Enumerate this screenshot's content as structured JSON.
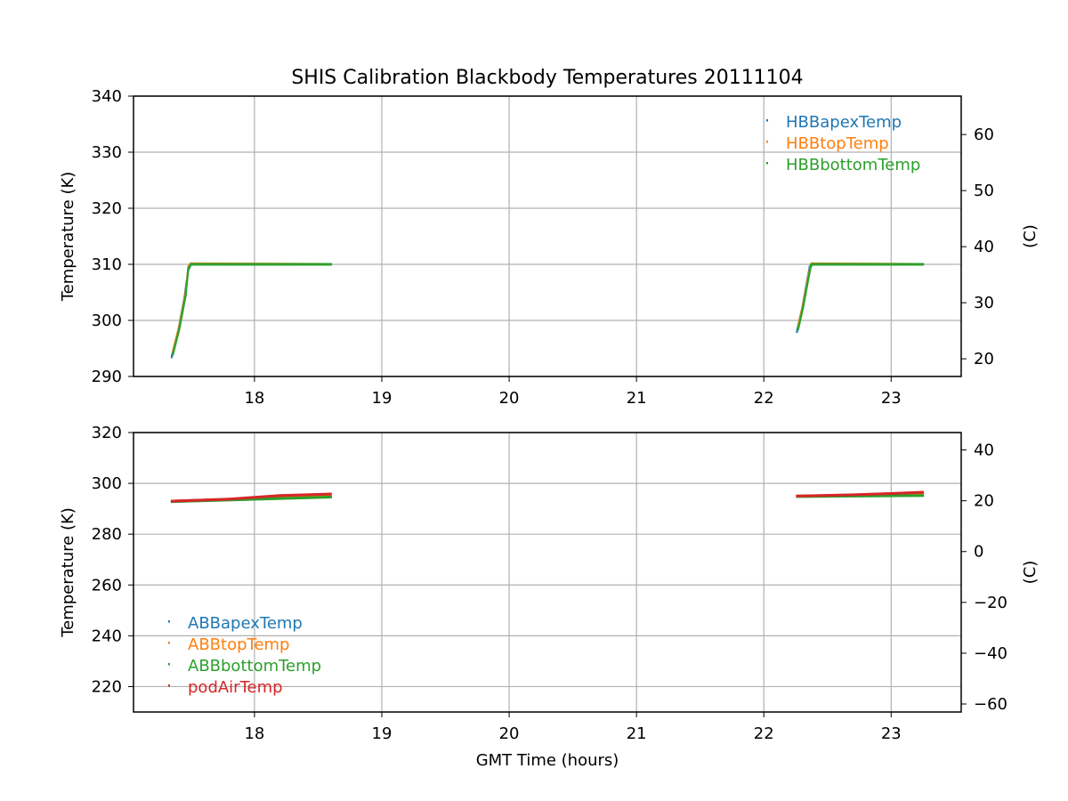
{
  "title": "SHIS Calibration Blackbody Temperatures 20111104",
  "chart_data": [
    {
      "type": "scatter",
      "xlabel": "",
      "ylabel": "Temperature (K)",
      "ylabel_right": "(C)",
      "xlim": [
        17.05,
        23.55
      ],
      "ylim": [
        290,
        340
      ],
      "xticks": [
        18,
        19,
        20,
        21,
        22,
        23
      ],
      "yticks": [
        290,
        300,
        310,
        320,
        330,
        340
      ],
      "yticks_right": [
        20,
        30,
        40,
        50,
        60
      ],
      "legend_loc": "upper-right",
      "grid": true,
      "series": [
        {
          "name": "HBBapexTemp",
          "color": "#1f77b4",
          "segments": [
            {
              "x": [
                17.35,
                17.4,
                17.45,
                17.48,
                17.5,
                18.6
              ],
              "y": [
                293.5,
                298.0,
                304.0,
                309.0,
                310.0,
                310.0
              ]
            },
            {
              "x": [
                22.26,
                22.3,
                22.34,
                22.36,
                22.38,
                23.25
              ],
              "y": [
                298.0,
                302.0,
                307.0,
                309.5,
                310.0,
                310.0
              ]
            }
          ]
        },
        {
          "name": "HBBtopTemp",
          "color": "#ff7f0e",
          "segments": [
            {
              "x": [
                17.36,
                17.41,
                17.46,
                17.48,
                17.5,
                18.6
              ],
              "y": [
                294.5,
                299.0,
                305.0,
                309.5,
                310.1,
                310.0
              ]
            },
            {
              "x": [
                22.27,
                22.31,
                22.35,
                22.37,
                22.38,
                23.25
              ],
              "y": [
                299.0,
                303.0,
                308.0,
                310.0,
                310.1,
                310.0
              ]
            }
          ]
        },
        {
          "name": "HBBbottomTemp",
          "color": "#2ca02c",
          "segments": [
            {
              "x": [
                17.36,
                17.41,
                17.46,
                17.48,
                17.5,
                18.6
              ],
              "y": [
                294.0,
                298.5,
                304.5,
                309.2,
                310.0,
                310.0
              ]
            },
            {
              "x": [
                22.27,
                22.31,
                22.35,
                22.37,
                22.38,
                23.25
              ],
              "y": [
                298.5,
                302.5,
                307.5,
                309.8,
                310.0,
                310.0
              ]
            }
          ]
        }
      ]
    },
    {
      "type": "scatter",
      "xlabel": "GMT Time (hours)",
      "ylabel": "Temperature (K)",
      "ylabel_right": "(C)",
      "xlim": [
        17.05,
        23.55
      ],
      "ylim": [
        210,
        320
      ],
      "xticks": [
        18,
        19,
        20,
        21,
        22,
        23
      ],
      "yticks": [
        220,
        240,
        260,
        280,
        300,
        320
      ],
      "yticks_right": [
        -60,
        -40,
        -20,
        0,
        20,
        40
      ],
      "legend_loc": "lower-left",
      "grid": true,
      "series": [
        {
          "name": "ABBapexTemp",
          "color": "#1f77b4",
          "segments": [
            {
              "x": [
                17.35,
                18.6
              ],
              "y": [
                293.0,
                294.8
              ]
            },
            {
              "x": [
                22.26,
                23.25
              ],
              "y": [
                295.0,
                295.5
              ]
            }
          ]
        },
        {
          "name": "ABBtopTemp",
          "color": "#ff7f0e",
          "segments": [
            {
              "x": [
                17.35,
                18.6
              ],
              "y": [
                293.0,
                294.9
              ]
            },
            {
              "x": [
                22.26,
                23.25
              ],
              "y": [
                295.0,
                295.6
              ]
            }
          ]
        },
        {
          "name": "ABBbottomTemp",
          "color": "#2ca02c",
          "segments": [
            {
              "x": [
                17.35,
                18.6
              ],
              "y": [
                292.8,
                294.6
              ]
            },
            {
              "x": [
                22.26,
                23.25
              ],
              "y": [
                294.8,
                295.2
              ]
            }
          ]
        },
        {
          "name": "podAirTemp",
          "color": "#d62728",
          "segments": [
            {
              "x": [
                17.35,
                17.8,
                18.2,
                18.6
              ],
              "y": [
                293.0,
                293.8,
                295.2,
                295.8
              ]
            },
            {
              "x": [
                22.26,
                22.7,
                23.0,
                23.25
              ],
              "y": [
                295.0,
                295.5,
                296.0,
                296.5
              ]
            }
          ]
        }
      ]
    }
  ]
}
